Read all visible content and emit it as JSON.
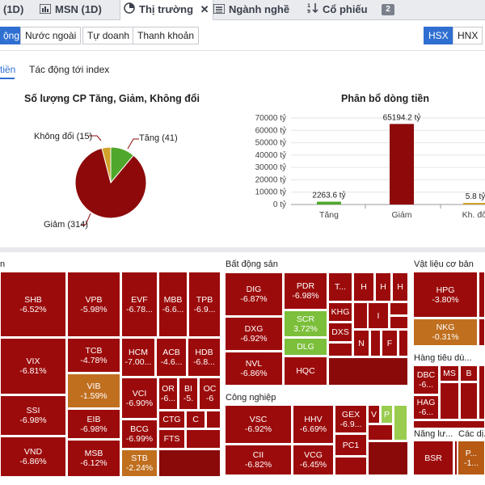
{
  "tabs": [
    {
      "label": "(1D)",
      "icon": "none"
    },
    {
      "label": "MSN (1D)",
      "icon": "bar-chart-icon"
    },
    {
      "label": "Thị trường",
      "icon": "pie-chart-icon",
      "close": "✕"
    },
    {
      "label": "Ngành nghề",
      "icon": "list-icon"
    },
    {
      "label": "Cổ phiếu",
      "icon": "sort-icon"
    },
    {
      "label": "2"
    }
  ],
  "subbuttons": [
    "ộng",
    "Nước ngoài",
    "Tự doanh",
    "Thanh khoản"
  ],
  "exchanges": [
    "HSX",
    "HNX"
  ],
  "subtabs": [
    "tiền",
    "Tác động tới index"
  ],
  "pie_title": "Số lượng CP Tăng, Giảm, Không đổi",
  "bar_title": "Phân bổ dòng tiền",
  "pie_labels": {
    "unchanged": "Không đổi (15)",
    "up": "Tăng (41)",
    "down": "Giảm (314)"
  },
  "colors": {
    "down": "#8e0a0a",
    "up": "#4fa82b",
    "flat": "#d1a22a",
    "tab_active": "#2f6fd1"
  },
  "chart_data": [
    {
      "type": "pie",
      "title": "Số lượng CP Tăng, Giảm, Không đổi",
      "slices": [
        {
          "name": "Giảm",
          "value": 314,
          "color": "#8e0a0a"
        },
        {
          "name": "Tăng",
          "value": 41,
          "color": "#4fa82b"
        },
        {
          "name": "Không đổi",
          "value": 15,
          "color": "#d1a22a"
        }
      ]
    },
    {
      "type": "bar",
      "title": "Phân bổ dòng tiền",
      "categories": [
        "Tăng",
        "Giảm",
        "Kh. đổi"
      ],
      "values": [
        2263.6,
        65194.2,
        5.8
      ],
      "data_labels": [
        "2263.6 tỷ",
        "65194.2 tỷ",
        "5.8 tỷ"
      ],
      "yticks": [
        "0 tỷ",
        "10000 tỷ",
        "20000 tỷ",
        "30000 tỷ",
        "40000 tỷ",
        "50000 tỷ",
        "60000 tỷ",
        "70000 tỷ"
      ],
      "ylim": [
        0,
        70000
      ],
      "colors": [
        "#4fa82b",
        "#8e0a0a",
        "#d1a22a"
      ]
    }
  ],
  "sectors": {
    "bds": "Bất động sản",
    "vlcb": "Vật liệu cơ bản",
    "hangtd": "Hàng tiêu dù...",
    "congnghiep": "Công nghiệp",
    "nangluong": "Năng lư...",
    "cacdv": "Các dị..."
  },
  "cells": {
    "SHB": "-6.52%",
    "VIX": "-6.81%",
    "SSI": "-6.98%",
    "VND": "-6.86%",
    "VPB": "-5.98%",
    "TCB": "-4.78%",
    "VIB": "-1.59%",
    "EIB": "-6.98%",
    "MSB": "-6.12%",
    "EVF": "-6.78...",
    "MBB": "-6.6...",
    "TPB": "-6.9...",
    "HCM": "-7.00...",
    "ACB": "-4.6...",
    "HDB": "-6.8...",
    "VCI": "-6.90%",
    "OR": "-6...",
    "BI": "-5.",
    "OC": "-6",
    "BCG": "-6.99%",
    "CTG": "",
    "C": "",
    "FTS": "",
    "STB": "-2.24%",
    "DIG": "-6.87%",
    "PDR": "-6.98%",
    "DXG": "-6.92%",
    "SCR": "3.72%",
    "DLG": "",
    "NVL": "-6.86%",
    "HQC": "",
    "KHG": "",
    "DXS": "",
    "T...": "",
    "H": "",
    "I": "",
    "N": "",
    "F": "",
    "VSC": "-6.92%",
    "HHV": "-6.69%",
    "GEX": "-6.9...",
    "CII": "-6.82%",
    "VCG": "-6.45%",
    "PC1": "",
    "V": "",
    "P": "",
    "HPG": "-3.80%",
    "NKG": "-0.31%",
    "DBC": "-6...",
    "MS": "",
    "B": "",
    "HAG": "-6...",
    "BSR": "",
    "P...": "-1..."
  }
}
